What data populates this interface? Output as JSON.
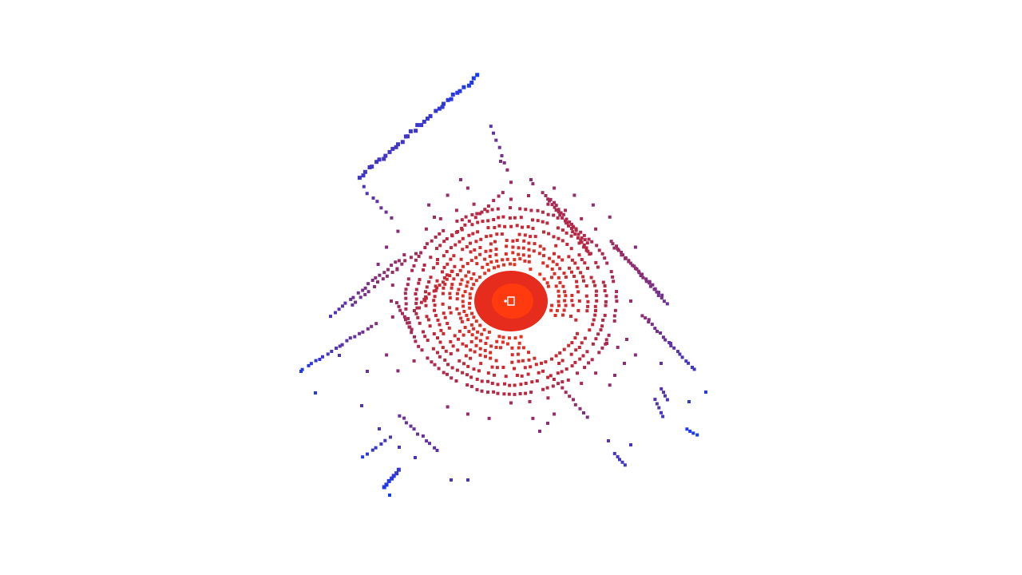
{
  "viewer": {
    "background_color": "#ffffff",
    "point_colors": {
      "near": "#ff3a0f",
      "mid": "#c0283a",
      "far": "#0a3cff"
    }
  },
  "icons": {
    "sensor_origin": "sensor-origin-icon"
  }
}
